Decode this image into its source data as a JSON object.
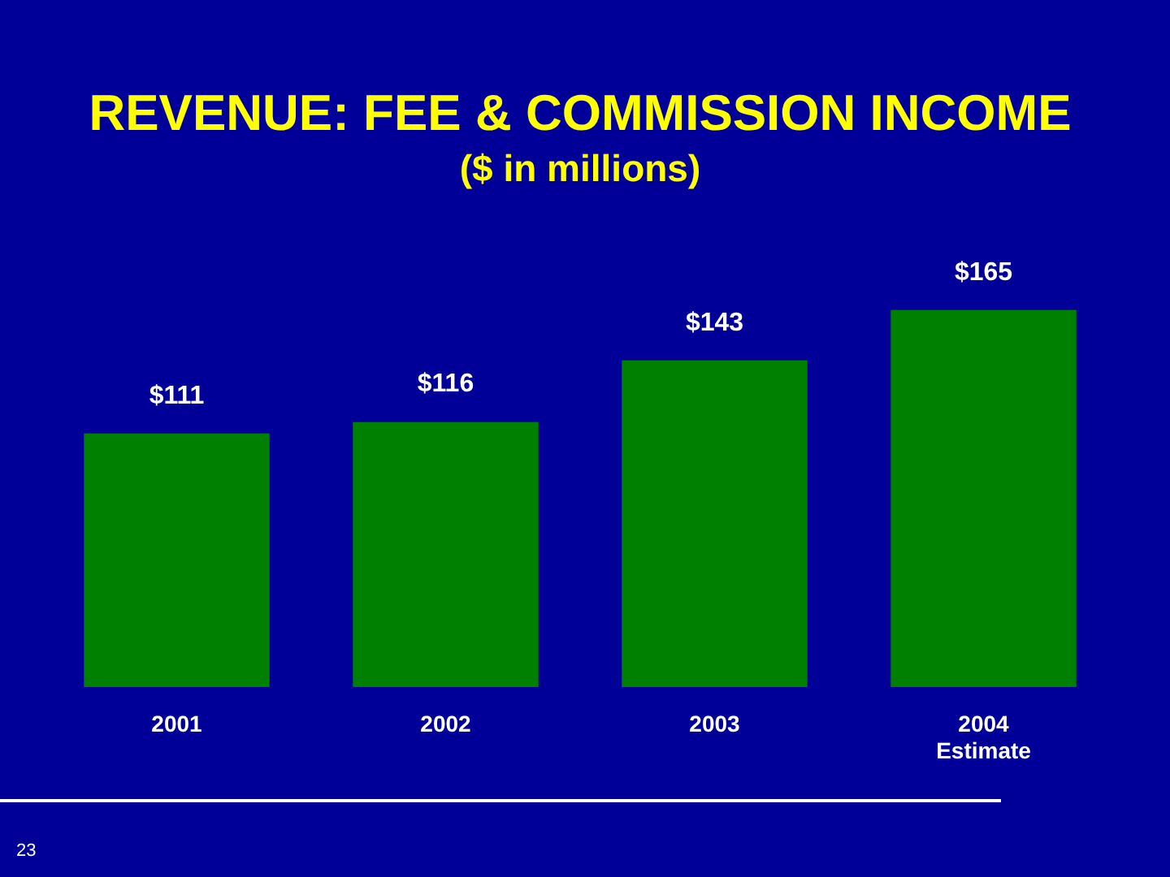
{
  "chart_data": {
    "type": "bar",
    "title": "REVENUE: FEE & COMMISSION INCOME",
    "subtitle": "($ in millions)",
    "categories": [
      "2001",
      "2002",
      "2003",
      "2004\nEstimate"
    ],
    "values": [
      111,
      116,
      143,
      165
    ],
    "color": "#008000",
    "value_labels": [
      "$111",
      "$116",
      "$143",
      "$165"
    ],
    "annotations": [
      "23"
    ]
  }
}
